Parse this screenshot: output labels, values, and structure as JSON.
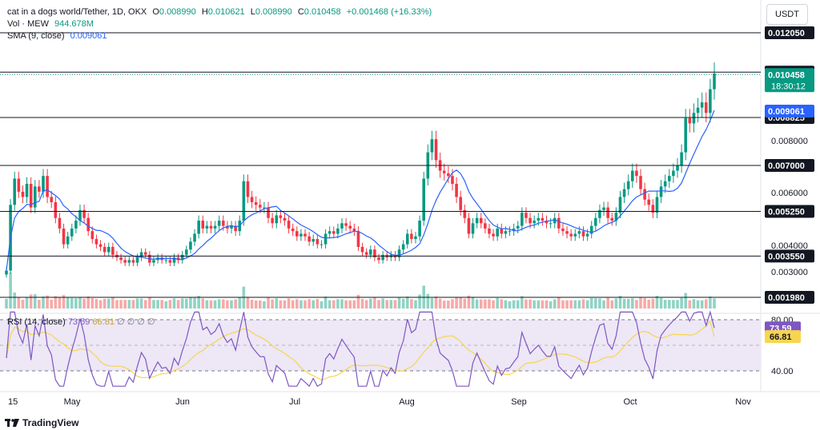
{
  "header": {
    "symbol": "cat in a dogs world/Tether, 1D, OKX",
    "o_label": "O",
    "o_value": "0.008990",
    "h_label": "H",
    "h_value": "0.010621",
    "l_label": "L",
    "l_value": "0.008990",
    "c_label": "C",
    "c_value": "0.010458",
    "change": "+0.001468 (+16.33%)",
    "vol_label": "Vol · MEW",
    "vol_value": "944.678M",
    "sma_label": "SMA (9, close)",
    "sma_value": "0.009061",
    "rsi_label": "RSI (14, close)",
    "rsi_value": "73.59",
    "rsi_ma_value": "66.81",
    "rsi_extra": "∅ ∅ ∅ ∅",
    "currency_button": "USDT"
  },
  "colors": {
    "up": "#089981",
    "down": "#f23645",
    "sma": "#2962ff",
    "rsi": "#7e57c2",
    "rsi_ma": "#f7d54f",
    "rsi_band": "#ede7f6",
    "level_line": "#131722"
  },
  "branding": {
    "logo_text": "TradingView"
  },
  "price_axis": {
    "levels": [
      {
        "name": "level-0.012050",
        "label": "0.012050"
      },
      {
        "name": "level-0.010550",
        "label": "0.010550"
      },
      {
        "name": "level-0.008825",
        "label": "0.008825"
      },
      {
        "name": "level-0.007000",
        "label": "0.007000"
      },
      {
        "name": "level-0.005250",
        "label": "0.005250"
      },
      {
        "name": "level-0.003550",
        "label": "0.003550"
      },
      {
        "name": "level-0.001980",
        "label": "0.001980"
      }
    ],
    "ticks": [
      "0.008000",
      "0.006000",
      "0.004000",
      "0.003000"
    ],
    "last_price": "0.010458",
    "countdown": "18:30:12",
    "sma_price": "0.009061"
  },
  "rsi_axis": {
    "ticks": [
      "80.00",
      "40.00"
    ],
    "rsi_tag": "73.59",
    "ma_tag": "66.81"
  },
  "time_axis": {
    "labels": [
      "15",
      "May",
      "Jun",
      "Jul",
      "Aug",
      "Sep",
      "Oct",
      "Nov"
    ]
  },
  "chart_data": {
    "type": "candlestick",
    "price_series": [
      0.003,
      0.0055,
      0.0065,
      0.006,
      0.0058,
      0.0063,
      0.0054,
      0.0062,
      0.006,
      0.0066,
      0.0058,
      0.0056,
      0.005,
      0.0046,
      0.004,
      0.0043,
      0.0046,
      0.0049,
      0.0053,
      0.005,
      0.0045,
      0.0042,
      0.004,
      0.0039,
      0.0037,
      0.0039,
      0.0036,
      0.0035,
      0.0034,
      0.0033,
      0.0034,
      0.0033,
      0.0035,
      0.0037,
      0.0036,
      0.0033,
      0.0034,
      0.0035,
      0.0034,
      0.0034,
      0.0033,
      0.0035,
      0.0034,
      0.0036,
      0.0038,
      0.0041,
      0.0044,
      0.0049,
      0.0046,
      0.0047,
      0.0046,
      0.0047,
      0.0049,
      0.0047,
      0.0046,
      0.0047,
      0.0045,
      0.0049,
      0.0064,
      0.0058,
      0.0056,
      0.0055,
      0.0054,
      0.0054,
      0.005,
      0.0048,
      0.0051,
      0.005,
      0.0049,
      0.0046,
      0.0045,
      0.0043,
      0.0044,
      0.0043,
      0.0041,
      0.0042,
      0.004,
      0.004,
      0.0044,
      0.0045,
      0.0044,
      0.0046,
      0.0048,
      0.0047,
      0.0046,
      0.0045,
      0.0039,
      0.0037,
      0.0036,
      0.0038,
      0.0035,
      0.0034,
      0.0036,
      0.0035,
      0.0036,
      0.0035,
      0.0038,
      0.004,
      0.0044,
      0.0042,
      0.0043,
      0.0049,
      0.0065,
      0.0075,
      0.008,
      0.0072,
      0.0068,
      0.0067,
      0.0066,
      0.0063,
      0.0058,
      0.0053,
      0.005,
      0.0044,
      0.0048,
      0.005,
      0.0048,
      0.0046,
      0.0044,
      0.0043,
      0.0046,
      0.0044,
      0.0045,
      0.0045,
      0.0046,
      0.0047,
      0.0052,
      0.005,
      0.0048,
      0.0049,
      0.005,
      0.0049,
      0.0048,
      0.0048,
      0.005,
      0.0046,
      0.0045,
      0.0044,
      0.0043,
      0.0044,
      0.0045,
      0.0043,
      0.0044,
      0.0047,
      0.005,
      0.0053,
      0.0054,
      0.005,
      0.0049,
      0.0052,
      0.0058,
      0.0061,
      0.0064,
      0.0068,
      0.0066,
      0.0061,
      0.0057,
      0.0055,
      0.0052,
      0.0058,
      0.0062,
      0.0064,
      0.0066,
      0.0068,
      0.007,
      0.0075,
      0.0088,
      0.0086,
      0.009,
      0.0092,
      0.0094,
      0.009,
      0.0099,
      0.0105
    ],
    "sma_period": 9,
    "horizontal_levels": [
      0.01205,
      0.01055,
      0.008825,
      0.007,
      0.00525,
      0.00355,
      0.00198
    ],
    "last_close": 0.010458,
    "rsi_last": 73.59,
    "rsi_ma_last": 66.81,
    "rsi_levels": [
      80,
      40
    ]
  }
}
